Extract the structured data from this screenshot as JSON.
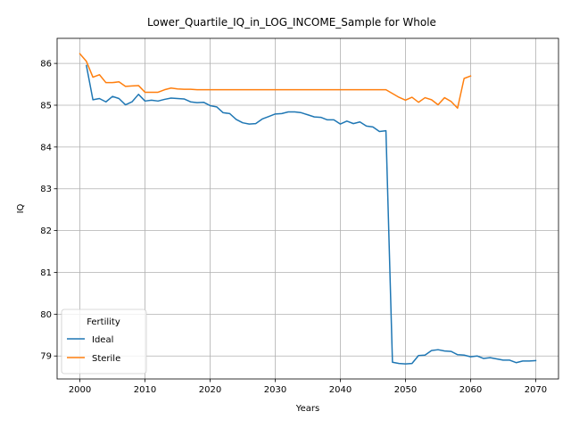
{
  "chart_data": {
    "type": "line",
    "title": "Lower_Quartile_IQ_in_LOG_INCOME_Sample for Whole",
    "xlabel": "Years",
    "ylabel": "IQ",
    "xlim": [
      1996.5,
      2073.5
    ],
    "ylim": [
      78.45,
      86.6
    ],
    "xticks": [
      2000,
      2010,
      2020,
      2030,
      2040,
      2050,
      2060,
      2070
    ],
    "yticks": [
      79,
      80,
      81,
      82,
      83,
      84,
      85,
      86
    ],
    "grid": true,
    "legend": {
      "title": "Fertility",
      "placement": "lower-left"
    },
    "series": [
      {
        "name": "Ideal",
        "color": "#1f77b4",
        "x": [
          2001,
          2002,
          2003,
          2004,
          2005,
          2006,
          2007,
          2008,
          2009,
          2010,
          2011,
          2012,
          2013,
          2014,
          2015,
          2016,
          2017,
          2018,
          2019,
          2020,
          2021,
          2022,
          2023,
          2024,
          2025,
          2026,
          2027,
          2028,
          2029,
          2030,
          2031,
          2032,
          2033,
          2034,
          2035,
          2036,
          2037,
          2038,
          2039,
          2040,
          2041,
          2042,
          2043,
          2044,
          2045,
          2046,
          2047,
          2048,
          2049,
          2050,
          2051,
          2052,
          2053,
          2054,
          2055,
          2056,
          2057,
          2058,
          2059,
          2060,
          2061,
          2062,
          2063,
          2064,
          2065,
          2066,
          2067,
          2068,
          2069,
          2070
        ],
        "y": [
          85.95,
          85.13,
          85.16,
          85.08,
          85.21,
          85.16,
          85.01,
          85.08,
          85.26,
          85.1,
          85.12,
          85.1,
          85.14,
          85.17,
          85.16,
          85.15,
          85.08,
          85.06,
          85.07,
          84.99,
          84.96,
          84.82,
          84.8,
          84.66,
          84.58,
          84.55,
          84.56,
          84.67,
          84.73,
          84.79,
          84.8,
          84.84,
          84.84,
          84.82,
          84.77,
          84.72,
          84.71,
          84.65,
          84.65,
          84.55,
          84.62,
          84.56,
          84.6,
          84.5,
          84.48,
          84.37,
          84.39,
          78.85,
          78.82,
          78.81,
          78.82,
          79.01,
          79.02,
          79.13,
          79.15,
          79.12,
          79.11,
          79.03,
          79.02,
          78.98,
          79.0,
          78.94,
          78.96,
          78.93,
          78.9,
          78.9,
          78.84,
          78.88,
          78.88,
          78.89
        ]
      },
      {
        "name": "Sterile",
        "color": "#ff7f0e",
        "x": [
          2000,
          2001,
          2002,
          2003,
          2004,
          2005,
          2006,
          2007,
          2008,
          2009,
          2010,
          2011,
          2012,
          2013,
          2014,
          2015,
          2016,
          2017,
          2018,
          2019,
          2020,
          2021,
          2022,
          2023,
          2024,
          2025,
          2026,
          2027,
          2028,
          2029,
          2030,
          2031,
          2032,
          2033,
          2034,
          2035,
          2036,
          2037,
          2038,
          2039,
          2040,
          2041,
          2042,
          2043,
          2044,
          2045,
          2046,
          2047,
          2048,
          2049,
          2050,
          2051,
          2052,
          2053,
          2054,
          2055,
          2056,
          2057,
          2058,
          2059,
          2060
        ],
        "y": [
          86.23,
          86.05,
          85.67,
          85.73,
          85.54,
          85.54,
          85.56,
          85.45,
          85.46,
          85.47,
          85.31,
          85.31,
          85.31,
          85.37,
          85.41,
          85.39,
          85.38,
          85.38,
          85.37,
          85.37,
          85.37,
          85.37,
          85.37,
          85.37,
          85.37,
          85.37,
          85.37,
          85.37,
          85.37,
          85.37,
          85.37,
          85.37,
          85.37,
          85.37,
          85.37,
          85.37,
          85.37,
          85.37,
          85.37,
          85.37,
          85.37,
          85.37,
          85.37,
          85.37,
          85.37,
          85.37,
          85.37,
          85.37,
          85.28,
          85.19,
          85.12,
          85.19,
          85.07,
          85.18,
          85.13,
          85.01,
          85.18,
          85.09,
          84.93,
          85.64,
          85.7
        ]
      }
    ]
  }
}
